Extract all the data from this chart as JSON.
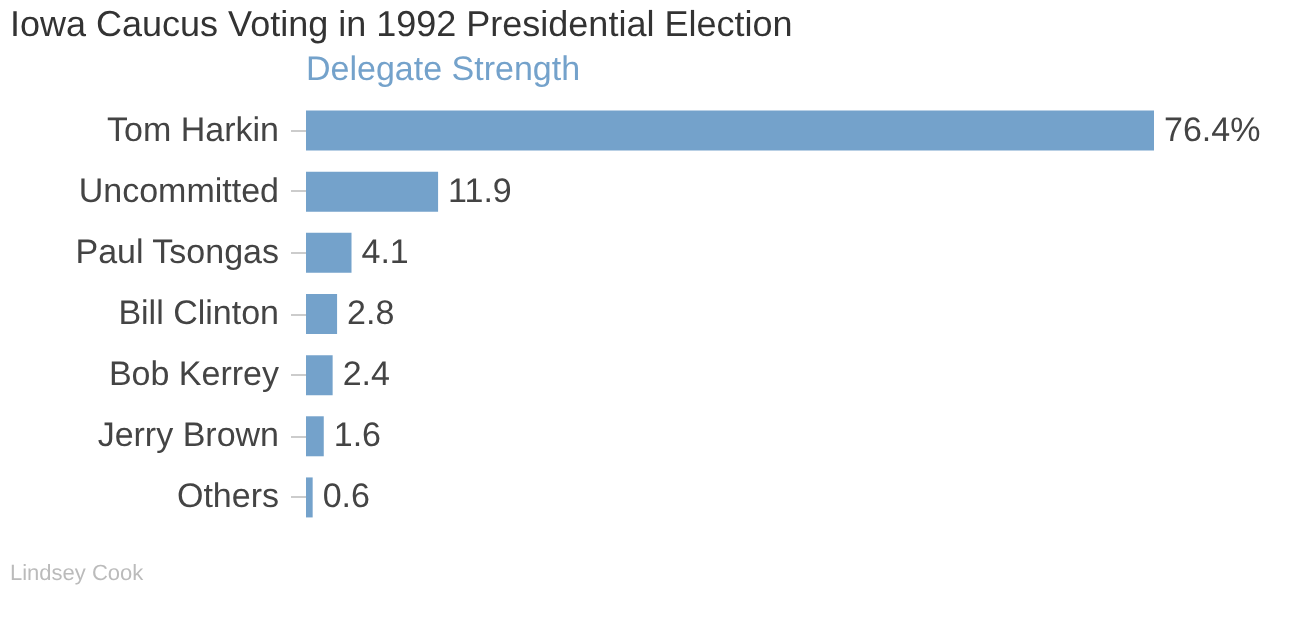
{
  "chart_data": {
    "type": "bar",
    "orientation": "horizontal",
    "title": "Iowa Caucus Voting in 1992 Presidential Election",
    "subtitle": "Delegate Strength",
    "categories": [
      "Tom Harkin",
      "Uncommitted",
      "Paul Tsongas",
      "Bill Clinton",
      "Bob Kerrey",
      "Jerry Brown",
      "Others"
    ],
    "values": [
      76.4,
      11.9,
      4.1,
      2.8,
      2.4,
      1.6,
      0.6
    ],
    "value_labels": [
      "76.4%",
      "11.9",
      "4.1",
      "2.8",
      "2.4",
      "1.6",
      "0.6"
    ],
    "color": "#74a2cb",
    "tick_labels": "y",
    "annotations": [
      "Lindsey Cook"
    ]
  }
}
